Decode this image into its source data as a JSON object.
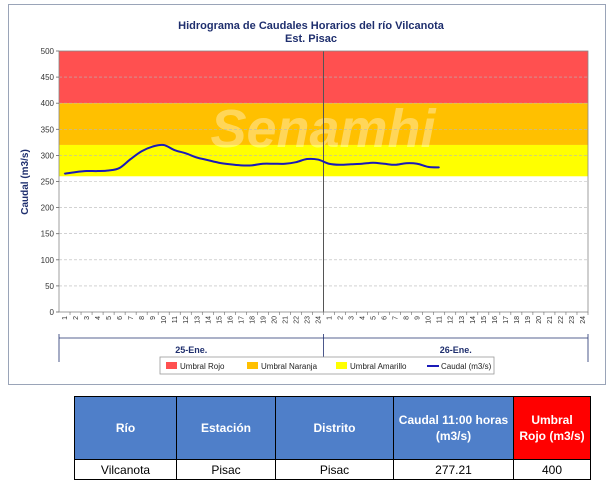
{
  "chart_data": {
    "type": "line",
    "title": "Hidrograma de Caudales Horarios del río Vilcanota",
    "subtitle": "Est. Pisac",
    "ylabel": "Caudal (m3/s)",
    "xlabel": "",
    "ylim": [
      0,
      500
    ],
    "yticks": [
      "0",
      "50",
      "100",
      "150",
      "200",
      "250",
      "300",
      "350",
      "400",
      "450",
      "500"
    ],
    "hours": [
      "1",
      "2",
      "3",
      "4",
      "5",
      "6",
      "7",
      "8",
      "9",
      "10",
      "11",
      "12",
      "13",
      "14",
      "15",
      "16",
      "17",
      "18",
      "19",
      "20",
      "21",
      "22",
      "23",
      "24"
    ],
    "days": [
      "25-Ene.",
      "26-Ene."
    ],
    "grid": true,
    "watermark": "Senamhi",
    "thresholds": [
      {
        "name": "Umbral Rojo",
        "from": 400,
        "to": 500,
        "color": "#ff5050"
      },
      {
        "name": "Umbral Naranja",
        "from": 320,
        "to": 400,
        "color": "#ffc000"
      },
      {
        "name": "Umbral Amarillo",
        "from": 260,
        "to": 320,
        "color": "#ffff00"
      }
    ],
    "series": [
      {
        "name": "Caudal (m3/s)",
        "color": "#1a1ab8",
        "x": [
          1,
          2,
          3,
          4,
          5,
          6,
          7,
          8,
          9,
          10,
          11,
          12,
          13,
          14,
          15,
          16,
          17,
          18,
          19,
          20,
          21,
          22,
          23,
          24,
          25,
          26,
          27,
          28,
          29,
          30,
          31,
          32,
          33,
          34,
          35
        ],
        "values": [
          265,
          268,
          270,
          270,
          271,
          276,
          293,
          308,
          317,
          320,
          310,
          304,
          296,
          291,
          286,
          283,
          281,
          281,
          284,
          284,
          284,
          287,
          293,
          292,
          284,
          282,
          283,
          284,
          286,
          284,
          282,
          285,
          284,
          278,
          277
        ]
      }
    ],
    "legend_position": "bottom"
  },
  "table": {
    "headers": [
      "Río",
      "Estación",
      "Distrito",
      "Caudal 11:00 horas (m3/s)",
      "Umbral Rojo (m3/s)"
    ],
    "row": [
      "Vilcanota",
      "Pisac",
      "Pisac",
      "277.21",
      "400"
    ]
  }
}
